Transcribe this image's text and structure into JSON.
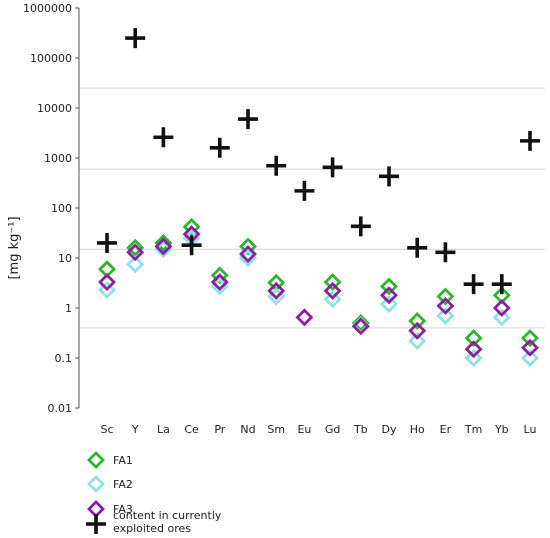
{
  "chart_data": {
    "type": "scatter",
    "ylabel": "[mg kg⁻¹]",
    "yscale": "log",
    "ylim": [
      0.01,
      1000000
    ],
    "yticks": [
      "0.01",
      "0.1",
      "1",
      "10",
      "100",
      "1000",
      "10000",
      "100000",
      "1000000"
    ],
    "categories": [
      "Sc",
      "Y",
      "La",
      "Ce",
      "Pr",
      "Nd",
      "Sm",
      "Eu",
      "Gd",
      "Tb",
      "Dy",
      "Ho",
      "Er",
      "Tm",
      "Yb",
      "Lu"
    ],
    "series": [
      {
        "name": "FA1",
        "marker": "diamond-open",
        "color": "#2db52d",
        "values": [
          6,
          16,
          20,
          42,
          4.5,
          17,
          3.2,
          null,
          3.3,
          0.5,
          2.7,
          0.55,
          1.7,
          0.25,
          1.8,
          0.25
        ]
      },
      {
        "name": "FA2",
        "marker": "diamond-open",
        "color": "#8fe0e8",
        "values": [
          2.3,
          7.5,
          15,
          25,
          2.7,
          10,
          1.7,
          null,
          1.5,
          0.45,
          1.2,
          0.22,
          0.7,
          0.1,
          0.65,
          0.1
        ]
      },
      {
        "name": "FA3",
        "marker": "diamond-open",
        "color": "#8c1fa0",
        "values": [
          3.3,
          13,
          17,
          30,
          3.3,
          12,
          2.2,
          0.65,
          2.2,
          0.43,
          1.8,
          0.35,
          1.1,
          0.15,
          1.0,
          0.16
        ]
      },
      {
        "name": "content in currently exploited ores",
        "marker": "plus",
        "color": "#111111",
        "values": [
          20,
          250000,
          2600,
          18,
          1600,
          6000,
          700,
          220,
          650,
          43,
          430,
          16,
          13,
          3,
          3,
          2200
        ]
      }
    ],
    "gridlines_y": [
      0.4,
      15,
      600,
      25000
    ],
    "legend_position": "bottom-left"
  }
}
